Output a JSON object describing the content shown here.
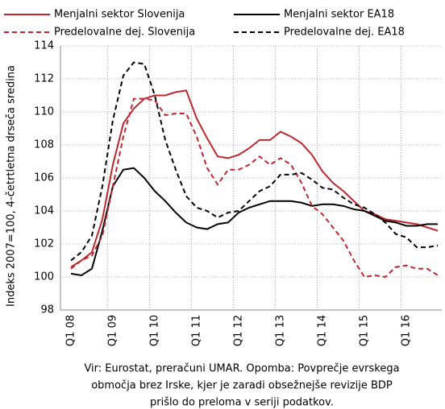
{
  "chart_data": {
    "type": "line",
    "y_label": "Indeks 2007=100, 4-četrtletna drseča sredina",
    "categories": [
      "Q1 08",
      null,
      null,
      null,
      "Q1 09",
      null,
      null,
      null,
      "Q1 10",
      null,
      null,
      null,
      "Q1 11",
      null,
      null,
      null,
      "Q1 12",
      null,
      null,
      null,
      "Q1 13",
      null,
      null,
      null,
      "Q1 14",
      null,
      null,
      null,
      "Q1 15",
      null,
      null,
      null,
      "Q1 16",
      null,
      null,
      null
    ],
    "series": [
      {
        "name": "Menjalni sektor Slovenija",
        "color": "#c0272d",
        "dash": false,
        "values": [
          100.6,
          101.0,
          101.5,
          103.5,
          106.8,
          109.3,
          110.2,
          110.8,
          111.0,
          111.0,
          111.2,
          111.3,
          109.6,
          108.4,
          107.3,
          107.2,
          107.4,
          107.8,
          108.3,
          108.3,
          108.8,
          108.5,
          108.1,
          107.4,
          106.4,
          105.7,
          105.2,
          104.6,
          104.0,
          103.8,
          103.5,
          103.4,
          103.3,
          103.2,
          103.0,
          102.8
        ]
      },
      {
        "name": "Menjalni sektor EA18",
        "color": "#000000",
        "dash": false,
        "values": [
          100.2,
          100.1,
          100.5,
          102.8,
          105.5,
          106.5,
          106.6,
          106.0,
          105.2,
          104.6,
          103.9,
          103.3,
          103.0,
          102.9,
          103.2,
          103.3,
          103.9,
          104.2,
          104.4,
          104.6,
          104.6,
          104.6,
          104.5,
          104.3,
          104.4,
          104.4,
          104.3,
          104.1,
          104.0,
          103.7,
          103.4,
          103.3,
          103.1,
          103.1,
          103.2,
          103.2
        ]
      },
      {
        "name": "Predelovalne dej. Slovenija",
        "color": "#c0272d",
        "dash": true,
        "values": [
          100.5,
          101.0,
          101.3,
          102.5,
          105.5,
          108.5,
          110.8,
          110.8,
          110.7,
          109.8,
          109.9,
          109.9,
          108.5,
          106.6,
          105.6,
          106.5,
          106.5,
          106.8,
          107.3,
          106.8,
          107.2,
          106.8,
          105.7,
          104.3,
          103.8,
          103.0,
          102.2,
          101.0,
          100.0,
          100.1,
          100.0,
          100.6,
          100.7,
          100.5,
          100.5,
          100.1
        ]
      },
      {
        "name": "Predelovalne dej. EA18",
        "color": "#000000",
        "dash": true,
        "values": [
          101.0,
          101.5,
          102.5,
          105.5,
          109.5,
          112.2,
          113.0,
          112.9,
          111.0,
          108.3,
          106.5,
          104.9,
          104.2,
          104.0,
          103.6,
          103.9,
          104.0,
          104.6,
          105.2,
          105.5,
          106.2,
          106.2,
          106.3,
          105.9,
          105.4,
          105.3,
          104.8,
          104.4,
          104.2,
          103.8,
          103.3,
          102.6,
          102.4,
          101.8,
          101.8,
          101.9
        ]
      }
    ],
    "ylim": [
      98,
      114
    ],
    "yticks": [
      98,
      100,
      102,
      104,
      106,
      108,
      110,
      112,
      114
    ],
    "grid": true,
    "note": [
      "Vir: Eurostat, preračuni UMAR. Opomba: Povprečje evrskega",
      "območja brez Irske, kjer je zaradi obsežnejše revizije BDP",
      "prišlo do preloma v seriji podatkov."
    ]
  }
}
